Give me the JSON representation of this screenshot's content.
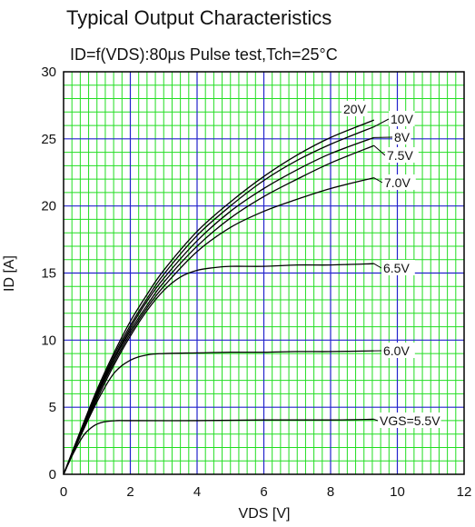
{
  "chart_data": {
    "type": "line",
    "title": "Typical Output Characteristics",
    "subtitle": "ID=f(VDS):80μs Pulse test,Tch=25°C",
    "xlabel": "VDS [V]",
    "ylabel": "ID [A]",
    "xlim": [
      0,
      12
    ],
    "ylim": [
      0,
      30
    ],
    "x_ticks": [
      "0",
      "2",
      "4",
      "6",
      "8",
      "10",
      "12"
    ],
    "y_ticks": [
      "0",
      "5",
      "10",
      "15",
      "20",
      "25",
      "30"
    ],
    "grid": true,
    "colors": {
      "grid_minor": "#22dd22",
      "grid_major": "#2222cc",
      "curve": "#000000",
      "frame": "#000000"
    },
    "series": [
      {
        "name": "20V",
        "points": [
          [
            0,
            0
          ],
          [
            0.5,
            3.2
          ],
          [
            1,
            6.3
          ],
          [
            1.5,
            9.0
          ],
          [
            2,
            11.4
          ],
          [
            2.5,
            13.4
          ],
          [
            3,
            15.2
          ],
          [
            4,
            18.1
          ],
          [
            5,
            20.3
          ],
          [
            6,
            22.2
          ],
          [
            7,
            23.8
          ],
          [
            8,
            25.1
          ],
          [
            9.3,
            26.4
          ]
        ]
      },
      {
        "name": "10V",
        "points": [
          [
            0,
            0
          ],
          [
            0.5,
            3.1
          ],
          [
            1,
            6.1
          ],
          [
            1.5,
            8.8
          ],
          [
            2,
            11.1
          ],
          [
            2.5,
            13.1
          ],
          [
            3,
            14.9
          ],
          [
            4,
            17.8
          ],
          [
            5,
            20.0
          ],
          [
            6,
            21.9
          ],
          [
            7,
            23.4
          ],
          [
            8,
            24.6
          ],
          [
            9.3,
            25.9
          ]
        ]
      },
      {
        "name": "8V",
        "points": [
          [
            0,
            0
          ],
          [
            0.5,
            3.0
          ],
          [
            1,
            6.0
          ],
          [
            1.5,
            8.6
          ],
          [
            2,
            10.9
          ],
          [
            2.5,
            12.9
          ],
          [
            3,
            14.6
          ],
          [
            4,
            17.4
          ],
          [
            5,
            19.6
          ],
          [
            6,
            21.3
          ],
          [
            7,
            22.7
          ],
          [
            8,
            23.9
          ],
          [
            9.3,
            25.1
          ]
        ]
      },
      {
        "name": "7.5V",
        "points": [
          [
            0,
            0
          ],
          [
            0.5,
            3.0
          ],
          [
            1,
            5.9
          ],
          [
            1.5,
            8.5
          ],
          [
            2,
            10.7
          ],
          [
            2.5,
            12.6
          ],
          [
            3,
            14.3
          ],
          [
            4,
            17.0
          ],
          [
            5,
            19.1
          ],
          [
            6,
            20.7
          ],
          [
            7,
            22.0
          ],
          [
            8,
            23.2
          ],
          [
            9.3,
            24.5
          ]
        ]
      },
      {
        "name": "7.0V",
        "points": [
          [
            0,
            0
          ],
          [
            0.5,
            2.9
          ],
          [
            1,
            5.8
          ],
          [
            1.5,
            8.3
          ],
          [
            2,
            10.5
          ],
          [
            2.5,
            12.4
          ],
          [
            3,
            14.0
          ],
          [
            4,
            16.6
          ],
          [
            5,
            18.4
          ],
          [
            6,
            19.6
          ],
          [
            7,
            20.5
          ],
          [
            8,
            21.3
          ],
          [
            9.3,
            22.1
          ]
        ]
      },
      {
        "name": "6.5V",
        "points": [
          [
            0,
            0
          ],
          [
            0.5,
            2.9
          ],
          [
            1,
            5.6
          ],
          [
            1.5,
            8.1
          ],
          [
            2,
            10.3
          ],
          [
            2.5,
            12.2
          ],
          [
            3,
            13.7
          ],
          [
            3.5,
            14.7
          ],
          [
            4,
            15.2
          ],
          [
            4.5,
            15.4
          ],
          [
            5,
            15.5
          ],
          [
            6,
            15.5
          ],
          [
            7,
            15.6
          ],
          [
            8,
            15.6
          ],
          [
            9.3,
            15.7
          ]
        ]
      },
      {
        "name": "6.0V",
        "points": [
          [
            0,
            0
          ],
          [
            0.5,
            2.8
          ],
          [
            1,
            5.4
          ],
          [
            1.5,
            7.5
          ],
          [
            2,
            8.5
          ],
          [
            2.5,
            8.9
          ],
          [
            3,
            9.0
          ],
          [
            4,
            9.05
          ],
          [
            5,
            9.1
          ],
          [
            6,
            9.1
          ],
          [
            7,
            9.15
          ],
          [
            8,
            9.15
          ],
          [
            9.3,
            9.2
          ]
        ]
      },
      {
        "name": "VGS=5.5V",
        "points": [
          [
            0,
            0
          ],
          [
            0.3,
            1.6
          ],
          [
            0.6,
            2.9
          ],
          [
            0.9,
            3.6
          ],
          [
            1.2,
            3.9
          ],
          [
            1.6,
            4.0
          ],
          [
            2,
            4.0
          ],
          [
            4,
            4.0
          ],
          [
            6,
            4.05
          ],
          [
            8,
            4.05
          ],
          [
            9.3,
            4.1
          ]
        ]
      }
    ]
  }
}
